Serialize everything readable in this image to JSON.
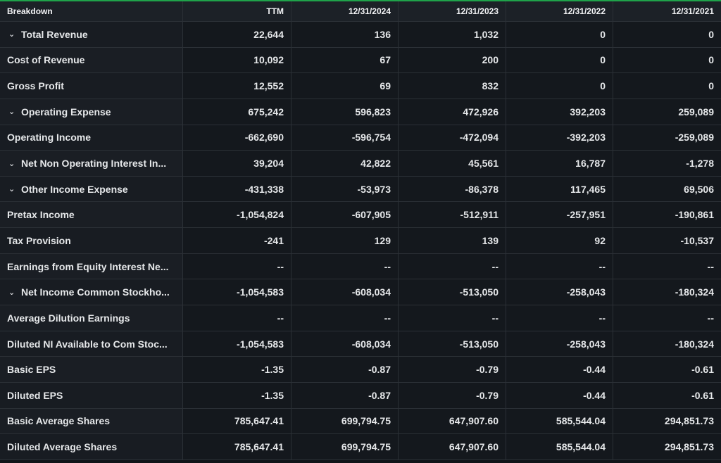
{
  "colors": {
    "accent": "#1fa34a",
    "background": "#101418"
  },
  "table": {
    "headers": [
      "Breakdown",
      "TTM",
      "12/31/2024",
      "12/31/2023",
      "12/31/2022",
      "12/31/2021"
    ],
    "rows": [
      {
        "label": "Total Revenue",
        "expandable": true,
        "values": [
          "22,644",
          "136",
          "1,032",
          "0",
          "0"
        ]
      },
      {
        "label": "Cost of Revenue",
        "expandable": false,
        "values": [
          "10,092",
          "67",
          "200",
          "0",
          "0"
        ]
      },
      {
        "label": "Gross Profit",
        "expandable": false,
        "values": [
          "12,552",
          "69",
          "832",
          "0",
          "0"
        ]
      },
      {
        "label": "Operating Expense",
        "expandable": true,
        "values": [
          "675,242",
          "596,823",
          "472,926",
          "392,203",
          "259,089"
        ]
      },
      {
        "label": "Operating Income",
        "expandable": false,
        "values": [
          "-662,690",
          "-596,754",
          "-472,094",
          "-392,203",
          "-259,089"
        ]
      },
      {
        "label": "Net Non Operating Interest In...",
        "expandable": true,
        "values": [
          "39,204",
          "42,822",
          "45,561",
          "16,787",
          "-1,278"
        ]
      },
      {
        "label": "Other Income Expense",
        "expandable": true,
        "values": [
          "-431,338",
          "-53,973",
          "-86,378",
          "117,465",
          "69,506"
        ]
      },
      {
        "label": "Pretax Income",
        "expandable": false,
        "values": [
          "-1,054,824",
          "-607,905",
          "-512,911",
          "-257,951",
          "-190,861"
        ]
      },
      {
        "label": "Tax Provision",
        "expandable": false,
        "values": [
          "-241",
          "129",
          "139",
          "92",
          "-10,537"
        ]
      },
      {
        "label": "Earnings from Equity Interest Ne...",
        "expandable": false,
        "values": [
          "--",
          "--",
          "--",
          "--",
          "--"
        ]
      },
      {
        "label": "Net Income Common Stockho...",
        "expandable": true,
        "values": [
          "-1,054,583",
          "-608,034",
          "-513,050",
          "-258,043",
          "-180,324"
        ]
      },
      {
        "label": "Average Dilution Earnings",
        "expandable": false,
        "values": [
          "--",
          "--",
          "--",
          "--",
          "--"
        ]
      },
      {
        "label": "Diluted NI Available to Com Stoc...",
        "expandable": false,
        "values": [
          "-1,054,583",
          "-608,034",
          "-513,050",
          "-258,043",
          "-180,324"
        ]
      },
      {
        "label": "Basic EPS",
        "expandable": false,
        "values": [
          "-1.35",
          "-0.87",
          "-0.79",
          "-0.44",
          "-0.61"
        ]
      },
      {
        "label": "Diluted EPS",
        "expandable": false,
        "values": [
          "-1.35",
          "-0.87",
          "-0.79",
          "-0.44",
          "-0.61"
        ]
      },
      {
        "label": "Basic Average Shares",
        "expandable": false,
        "values": [
          "785,647.41",
          "699,794.75",
          "647,907.60",
          "585,544.04",
          "294,851.73"
        ]
      },
      {
        "label": "Diluted Average Shares",
        "expandable": false,
        "values": [
          "785,647.41",
          "699,794.75",
          "647,907.60",
          "585,544.04",
          "294,851.73"
        ]
      }
    ]
  },
  "icons": {
    "expand": "chevron-down-icon"
  }
}
